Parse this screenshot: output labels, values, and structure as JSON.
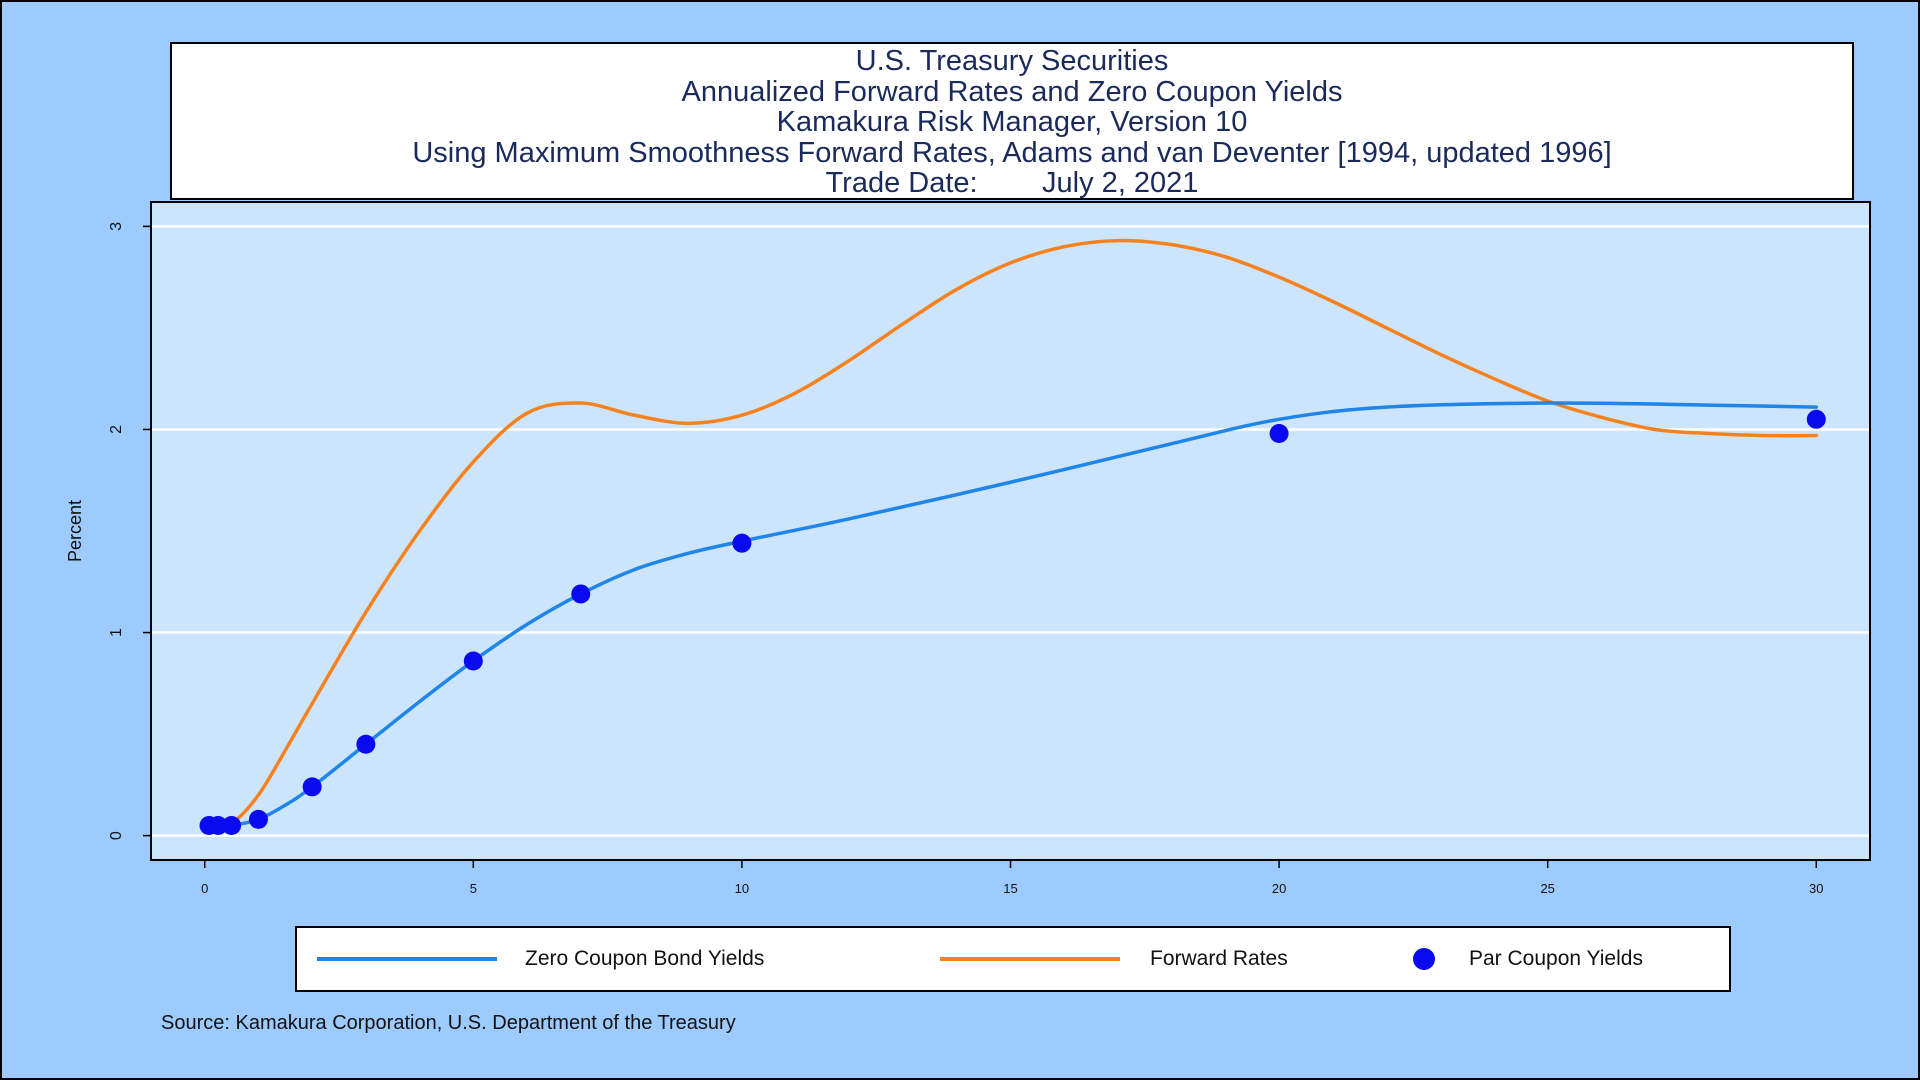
{
  "chart_data": {
    "type": "line",
    "title": [
      "U.S. Treasury Securities",
      "Annualized Forward Rates and Zero Coupon Yields",
      "Kamakura Risk Manager, Version 10",
      "Using Maximum Smoothness Forward Rates, Adams and van Deventer [1994, updated 1996]",
      "Trade Date:        July 2, 2021"
    ],
    "ylabel": "Percent",
    "xlabel": "",
    "xlim": [
      -1,
      31
    ],
    "ylim": [
      -0.12,
      3.12
    ],
    "x_ticks": [
      0,
      5,
      10,
      15,
      20,
      25,
      30
    ],
    "y_ticks": [
      0,
      1,
      2,
      3
    ],
    "grid": "horizontal",
    "legend_position": "bottom",
    "series": [
      {
        "name": "Zero Coupon Bond Yields",
        "type": "line",
        "color": "#1f85e8",
        "x": [
          0.08,
          0.5,
          1,
          1.5,
          2,
          3,
          4,
          5,
          6,
          7,
          8,
          9,
          10,
          12,
          15,
          18,
          20,
          22,
          25,
          28,
          30
        ],
        "y": [
          0.04,
          0.05,
          0.08,
          0.15,
          0.24,
          0.45,
          0.66,
          0.86,
          1.04,
          1.19,
          1.31,
          1.39,
          1.45,
          1.56,
          1.74,
          1.93,
          2.05,
          2.11,
          2.13,
          2.12,
          2.11
        ]
      },
      {
        "name": "Forward Rates",
        "type": "line",
        "color": "#f5821f",
        "x": [
          0.08,
          0.5,
          1,
          1.5,
          2,
          3,
          4,
          5,
          6,
          7,
          8,
          9,
          10,
          11,
          12,
          13,
          14,
          15,
          16,
          17,
          18,
          19,
          20,
          21,
          22,
          23,
          24,
          25,
          26,
          27,
          28,
          29,
          30
        ],
        "y": [
          0.04,
          0.06,
          0.2,
          0.42,
          0.65,
          1.1,
          1.5,
          1.84,
          2.08,
          2.13,
          2.07,
          2.03,
          2.07,
          2.18,
          2.34,
          2.52,
          2.69,
          2.82,
          2.9,
          2.93,
          2.91,
          2.85,
          2.75,
          2.63,
          2.5,
          2.37,
          2.25,
          2.14,
          2.06,
          2.0,
          1.98,
          1.97,
          1.97
        ]
      },
      {
        "name": "Par Coupon Yields",
        "type": "scatter",
        "color": "#0a0af0",
        "x": [
          0.08,
          0.25,
          0.5,
          1,
          2,
          3,
          5,
          7,
          10,
          20,
          30
        ],
        "y": [
          0.05,
          0.05,
          0.05,
          0.08,
          0.24,
          0.45,
          0.86,
          1.19,
          1.44,
          1.98,
          2.05
        ]
      }
    ],
    "source": "Source: Kamakura Corporation, U.S. Department of the Treasury"
  }
}
